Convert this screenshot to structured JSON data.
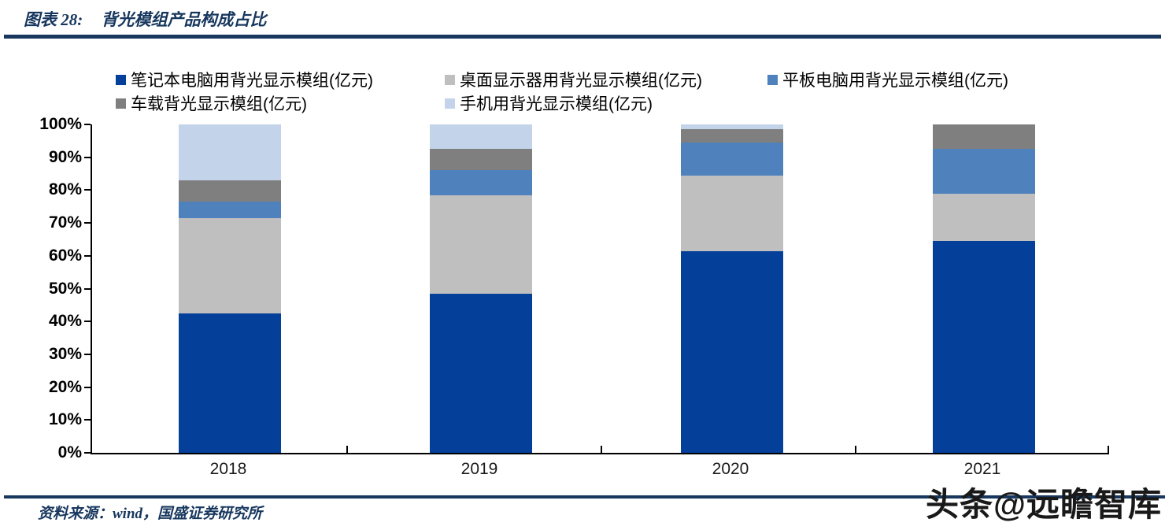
{
  "header": {
    "title_prefix": "图表 28:",
    "title": "背光模组产品构成占比"
  },
  "footer": {
    "source": "资料来源：wind，国盛证券研究所",
    "watermark": "头条@远瞻智库"
  },
  "colors": {
    "rule_navy": "#17375E",
    "axis_black": "#000000"
  },
  "chart_data": {
    "type": "bar",
    "stacked": true,
    "unit": "percent",
    "title": "背光模组产品构成占比",
    "categories": [
      "2018",
      "2019",
      "2020",
      "2021"
    ],
    "series": [
      {
        "name": "笔记本电脑用背光显示模组(亿元)",
        "color": "#04409A",
        "values": [
          42.5,
          48.5,
          61.5,
          64.5
        ]
      },
      {
        "name": "桌面显示器用背光显示模组(亿元)",
        "color": "#BFBFBF",
        "values": [
          29.0,
          30.0,
          23.0,
          14.5
        ]
      },
      {
        "name": "平板电脑用背光显示模组(亿元)",
        "color": "#4F81BD",
        "values": [
          5.0,
          7.5,
          10.0,
          13.5
        ]
      },
      {
        "name": "车载背光显示模组(亿元)",
        "color": "#7F7F7F",
        "values": [
          6.5,
          6.5,
          4.0,
          7.5
        ]
      },
      {
        "name": "手机用背光显示模组(亿元)",
        "color": "#C3D4EA",
        "values": [
          17.0,
          7.5,
          1.5,
          0.0
        ]
      }
    ],
    "ylim": [
      0,
      100
    ],
    "yticks": [
      "0%",
      "10%",
      "20%",
      "30%",
      "40%",
      "50%",
      "60%",
      "70%",
      "80%",
      "90%",
      "100%"
    ],
    "grid": false,
    "legend_position": "top"
  }
}
